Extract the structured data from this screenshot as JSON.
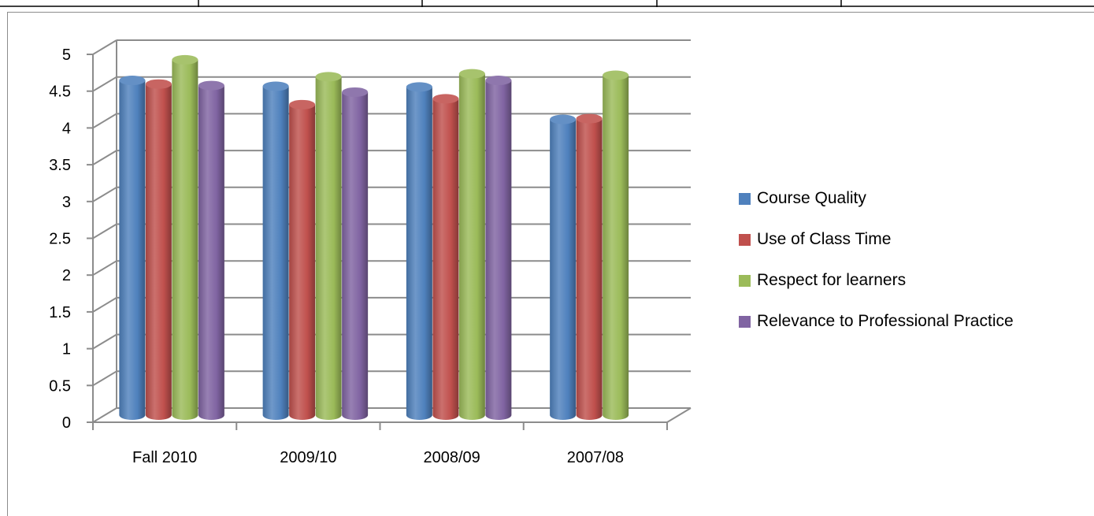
{
  "chart_data": {
    "type": "bar",
    "categories": [
      "Fall 2010",
      "2009/10",
      "2008/09",
      "2007/08"
    ],
    "series": [
      {
        "name": "Course Quality",
        "color": "#4f81bd",
        "values": [
          4.55,
          4.47,
          4.46,
          4.02
        ]
      },
      {
        "name": "Use of Class Time",
        "color": "#c0504d",
        "values": [
          4.5,
          4.22,
          4.3,
          4.03
        ]
      },
      {
        "name": "Respect for learners",
        "color": "#9bbb59",
        "values": [
          4.83,
          4.6,
          4.64,
          4.62
        ]
      },
      {
        "name": "Relevance to Professional Practice",
        "color": "#8064a2",
        "values": [
          4.48,
          4.39,
          4.55,
          null
        ]
      }
    ],
    "yticks": [
      "0",
      "0.5",
      "1",
      "1.5",
      "2",
      "2.5",
      "3",
      "3.5",
      "4",
      "4.5",
      "5"
    ],
    "ylim": [
      0,
      5
    ],
    "grid": true,
    "legend_position": "right",
    "style": "3d-cylinder"
  }
}
